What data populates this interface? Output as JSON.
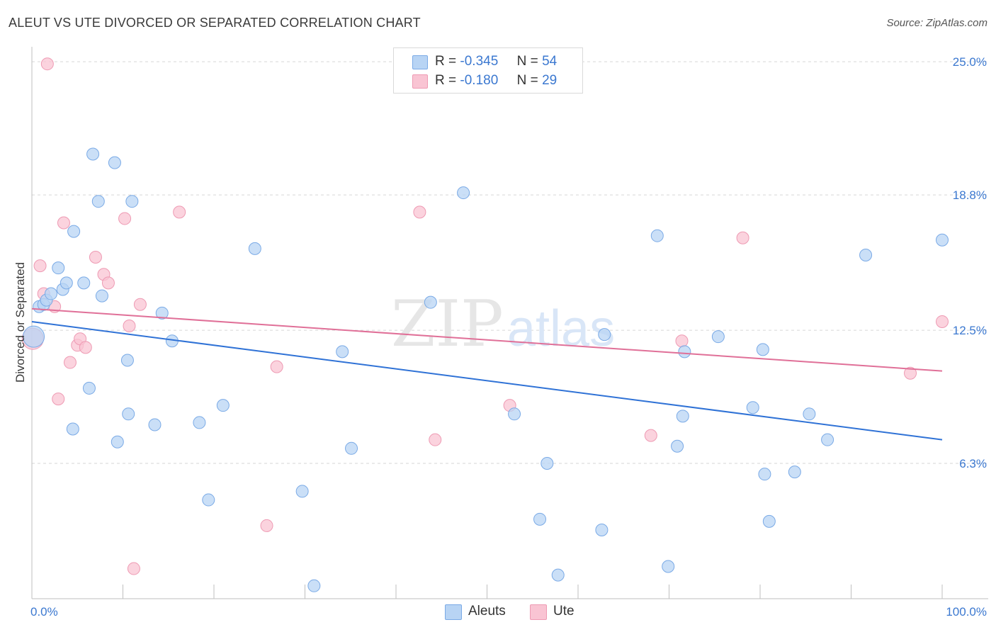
{
  "title": "ALEUT VS UTE DIVORCED OR SEPARATED CORRELATION CHART",
  "source": "Source: ZipAtlas.com",
  "watermark": {
    "zip": "ZIP",
    "atlas": "atlas"
  },
  "legend": {
    "rows": [
      {
        "r_label": "R =",
        "r_value": "-0.345",
        "n_label": "N =",
        "n_value": "54"
      },
      {
        "r_label": "R =",
        "r_value": "-0.180",
        "n_label": "N =",
        "n_value": "29"
      }
    ]
  },
  "colors": {
    "aleut_fill": "#b8d4f4",
    "aleut_stroke": "#7aaae6",
    "aleut_line": "#2f72d6",
    "ute_fill": "#f9c4d3",
    "ute_stroke": "#ee9ab3",
    "ute_line": "#e07098",
    "tick_text": "#3b78d0",
    "grid": "#d6d6d6"
  },
  "chart_data": {
    "type": "scatter",
    "title": "ALEUT VS UTE DIVORCED OR SEPARATED CORRELATION CHART",
    "xlabel": "",
    "ylabel": "Divorced or Separated",
    "xlim": [
      0,
      100
    ],
    "ylim": [
      0,
      25.5
    ],
    "x_tick_labels": [
      {
        "value": 0,
        "label": "0.0%"
      },
      {
        "value": 100,
        "label": "100.0%"
      }
    ],
    "y_tick_labels": [
      {
        "value": 6.3,
        "label": "6.3%"
      },
      {
        "value": 12.5,
        "label": "12.5%"
      },
      {
        "value": 18.8,
        "label": "18.8%"
      },
      {
        "value": 25.0,
        "label": "25.0%"
      }
    ],
    "series": [
      {
        "name": "Aleuts",
        "points": [
          {
            "x": 0.2,
            "y": 12.2,
            "size": "large"
          },
          {
            "x": 0.8,
            "y": 13.6
          },
          {
            "x": 1.3,
            "y": 13.7
          },
          {
            "x": 1.6,
            "y": 13.9
          },
          {
            "x": 2.1,
            "y": 14.2
          },
          {
            "x": 2.9,
            "y": 15.4
          },
          {
            "x": 3.4,
            "y": 14.4
          },
          {
            "x": 3.8,
            "y": 14.7
          },
          {
            "x": 4.6,
            "y": 17.1
          },
          {
            "x": 4.5,
            "y": 7.9
          },
          {
            "x": 5.7,
            "y": 14.7
          },
          {
            "x": 6.3,
            "y": 9.8
          },
          {
            "x": 6.7,
            "y": 20.7
          },
          {
            "x": 7.3,
            "y": 18.5
          },
          {
            "x": 7.7,
            "y": 14.1
          },
          {
            "x": 9.1,
            "y": 20.3
          },
          {
            "x": 9.4,
            "y": 7.3
          },
          {
            "x": 10.5,
            "y": 11.1
          },
          {
            "x": 10.6,
            "y": 8.6
          },
          {
            "x": 11.0,
            "y": 18.5
          },
          {
            "x": 13.5,
            "y": 8.1
          },
          {
            "x": 14.3,
            "y": 13.3
          },
          {
            "x": 15.4,
            "y": 12.0
          },
          {
            "x": 18.4,
            "y": 8.2
          },
          {
            "x": 19.4,
            "y": 4.6
          },
          {
            "x": 21.0,
            "y": 9.0
          },
          {
            "x": 24.5,
            "y": 16.3
          },
          {
            "x": 29.7,
            "y": 5.0
          },
          {
            "x": 31.0,
            "y": 0.6
          },
          {
            "x": 35.1,
            "y": 7.0
          },
          {
            "x": 34.1,
            "y": 11.5
          },
          {
            "x": 43.8,
            "y": 13.8
          },
          {
            "x": 47.4,
            "y": 18.9
          },
          {
            "x": 53.0,
            "y": 8.6
          },
          {
            "x": 55.8,
            "y": 3.7
          },
          {
            "x": 56.6,
            "y": 6.3
          },
          {
            "x": 57.8,
            "y": 1.1
          },
          {
            "x": 62.6,
            "y": 3.2
          },
          {
            "x": 62.9,
            "y": 12.3
          },
          {
            "x": 68.7,
            "y": 16.9
          },
          {
            "x": 69.9,
            "y": 1.5
          },
          {
            "x": 70.9,
            "y": 7.1
          },
          {
            "x": 71.5,
            "y": 8.5
          },
          {
            "x": 71.7,
            "y": 11.5
          },
          {
            "x": 75.4,
            "y": 12.2
          },
          {
            "x": 79.2,
            "y": 8.9
          },
          {
            "x": 80.3,
            "y": 11.6
          },
          {
            "x": 80.5,
            "y": 5.8
          },
          {
            "x": 81.0,
            "y": 3.6
          },
          {
            "x": 83.8,
            "y": 5.9
          },
          {
            "x": 85.4,
            "y": 8.6
          },
          {
            "x": 87.4,
            "y": 7.4
          },
          {
            "x": 91.6,
            "y": 16.0
          },
          {
            "x": 100.0,
            "y": 16.7
          }
        ],
        "trend": {
          "x1": 0,
          "y1": 12.9,
          "x2": 100,
          "y2": 7.4
        }
      },
      {
        "name": "Ute",
        "points": [
          {
            "x": 0.1,
            "y": 12.1,
            "size": "large"
          },
          {
            "x": 0.9,
            "y": 15.5
          },
          {
            "x": 1.3,
            "y": 14.2
          },
          {
            "x": 1.7,
            "y": 24.9
          },
          {
            "x": 2.5,
            "y": 13.6
          },
          {
            "x": 2.9,
            "y": 9.3
          },
          {
            "x": 3.5,
            "y": 17.5
          },
          {
            "x": 4.2,
            "y": 11.0
          },
          {
            "x": 5.0,
            "y": 11.8
          },
          {
            "x": 5.3,
            "y": 12.1
          },
          {
            "x": 5.9,
            "y": 11.7
          },
          {
            "x": 7.0,
            "y": 15.9
          },
          {
            "x": 7.9,
            "y": 15.1
          },
          {
            "x": 8.4,
            "y": 14.7
          },
          {
            "x": 10.2,
            "y": 17.7
          },
          {
            "x": 10.7,
            "y": 12.7
          },
          {
            "x": 11.2,
            "y": 1.4
          },
          {
            "x": 11.9,
            "y": 13.7
          },
          {
            "x": 16.2,
            "y": 18.0
          },
          {
            "x": 25.8,
            "y": 3.4
          },
          {
            "x": 26.9,
            "y": 10.8
          },
          {
            "x": 42.6,
            "y": 18.0
          },
          {
            "x": 44.3,
            "y": 7.4
          },
          {
            "x": 52.5,
            "y": 9.0
          },
          {
            "x": 68.0,
            "y": 7.6
          },
          {
            "x": 71.4,
            "y": 12.0
          },
          {
            "x": 78.1,
            "y": 16.8
          },
          {
            "x": 96.5,
            "y": 10.5
          },
          {
            "x": 100.0,
            "y": 12.9
          }
        ],
        "trend": {
          "x1": 0,
          "y1": 13.5,
          "x2": 100,
          "y2": 10.6
        }
      }
    ],
    "legend_position": "top-center",
    "grid": "horizontal dashed"
  }
}
